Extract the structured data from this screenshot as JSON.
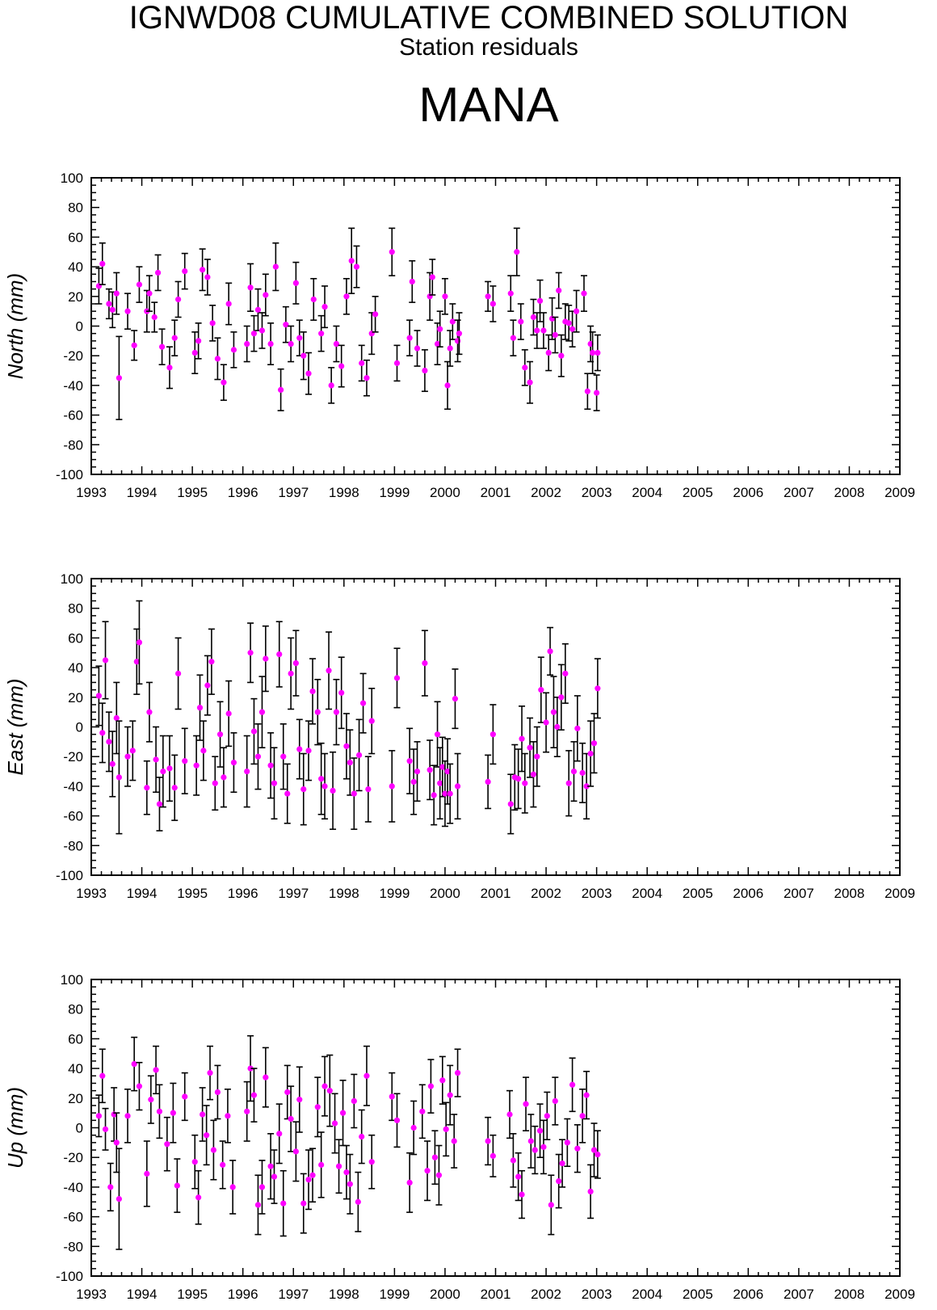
{
  "header": {
    "title": "IGNWD08 CUMULATIVE COMBINED SOLUTION",
    "subtitle": "Station residuals",
    "station": "MANA"
  },
  "colors": {
    "point": "#ff00ff",
    "errorbar": "#000000",
    "axis": "#000000",
    "background": "#ffffff"
  },
  "chart_data": [
    {
      "type": "scatter",
      "ylabel": "North (mm)",
      "xlim": [
        1993,
        2009
      ],
      "ylim": [
        -100,
        100
      ],
      "x_ticks": [
        "1993",
        "1994",
        "1995",
        "1996",
        "1997",
        "1998",
        "1999",
        "2000",
        "2001",
        "2002",
        "2003",
        "2004",
        "2005",
        "2006",
        "2007",
        "2008",
        "2009"
      ],
      "y_ticks": [
        "100",
        "80",
        "60",
        "40",
        "20",
        "0",
        "-20",
        "-40",
        "-60",
        "-80",
        "-100"
      ],
      "grid": false,
      "series": [
        {
          "x": [
            1993.15,
            1993.22,
            1993.35,
            1993.42,
            1993.5,
            1993.55,
            1993.72,
            1993.85,
            1993.95,
            1994.1,
            1994.15,
            1994.25,
            1994.32,
            1994.4,
            1994.55,
            1994.65,
            1994.72,
            1994.85,
            1995.05,
            1995.12,
            1995.2,
            1995.3,
            1995.4,
            1995.5,
            1995.62,
            1995.72,
            1995.82,
            1996.08,
            1996.15,
            1996.22,
            1996.3,
            1996.38,
            1996.45,
            1996.55,
            1996.65,
            1996.75,
            1996.85,
            1996.95,
            1997.05,
            1997.12,
            1997.2,
            1997.3,
            1997.4,
            1997.55,
            1997.62,
            1997.75,
            1997.85,
            1997.95,
            1998.05,
            1998.15,
            1998.25,
            1998.35,
            1998.45,
            1998.55,
            1998.62,
            1998.95,
            1999.05,
            1999.3,
            1999.35,
            1999.45,
            1999.6,
            1999.7,
            1999.75,
            1999.85,
            1999.9,
            2000.0,
            2000.05,
            2000.1,
            2000.15,
            2000.25,
            2000.28,
            2000.85,
            2000.95,
            2001.3,
            2001.35,
            2001.42,
            2001.5,
            2001.58,
            2001.68,
            2001.75,
            2001.82,
            2001.88,
            2001.95,
            2002.05,
            2002.12,
            2002.18,
            2002.25,
            2002.3,
            2002.38,
            2002.45,
            2002.52,
            2002.6,
            2002.75,
            2002.82,
            2002.88,
            2002.92,
            2003.0,
            2003.02
          ],
          "y": [
            27,
            42,
            15,
            11,
            22,
            -35,
            10,
            -13,
            28,
            10,
            22,
            6,
            36,
            -14,
            -28,
            -8,
            18,
            37,
            -18,
            -10,
            38,
            33,
            2,
            -22,
            -38,
            15,
            -16,
            -12,
            26,
            -5,
            11,
            -3,
            21,
            -12,
            40,
            -43,
            1,
            -12,
            29,
            -8,
            -20,
            -32,
            18,
            -5,
            13,
            -40,
            -12,
            -27,
            20,
            44,
            40,
            -25,
            -35,
            -5,
            8,
            50,
            -25,
            -8,
            30,
            -15,
            -30,
            20,
            33,
            -12,
            -2,
            20,
            -40,
            -15,
            3,
            -10,
            -5,
            20,
            15,
            22,
            -8,
            50,
            3,
            -28,
            -38,
            6,
            -3,
            17,
            -3,
            -18,
            5,
            -6,
            24,
            -20,
            3,
            2,
            -2,
            10,
            22,
            -44,
            -12,
            -18,
            -45,
            -18
          ],
          "err": [
            12,
            14,
            10,
            12,
            14,
            28,
            12,
            10,
            12,
            14,
            12,
            10,
            12,
            12,
            14,
            12,
            12,
            12,
            14,
            12,
            14,
            12,
            12,
            14,
            12,
            14,
            12,
            12,
            16,
            12,
            14,
            12,
            14,
            14,
            16,
            14,
            12,
            12,
            14,
            12,
            16,
            14,
            14,
            12,
            14,
            12,
            12,
            14,
            12,
            22,
            14,
            12,
            12,
            14,
            12,
            16,
            12,
            12,
            14,
            12,
            14,
            16,
            12,
            14,
            12,
            12,
            16,
            12,
            12,
            14,
            14,
            10,
            12,
            12,
            12,
            16,
            12,
            12,
            14,
            12,
            12,
            14,
            12,
            12,
            14,
            12,
            12,
            14,
            12,
            12,
            12,
            14,
            12,
            12,
            12,
            14,
            12,
            12
          ]
        }
      ]
    },
    {
      "type": "scatter",
      "ylabel": "East (mm)",
      "xlim": [
        1993,
        2009
      ],
      "ylim": [
        -100,
        100
      ],
      "x_ticks": [
        "1993",
        "1994",
        "1995",
        "1996",
        "1997",
        "1998",
        "1999",
        "2000",
        "2001",
        "2002",
        "2003",
        "2004",
        "2005",
        "2006",
        "2007",
        "2008",
        "2009"
      ],
      "y_ticks": [
        "100",
        "80",
        "60",
        "40",
        "20",
        "0",
        "-20",
        "-40",
        "-60",
        "-80",
        "-100"
      ],
      "grid": false,
      "series": [
        {
          "x": [
            1993.15,
            1993.22,
            1993.28,
            1993.35,
            1993.42,
            1993.5,
            1993.55,
            1993.72,
            1993.82,
            1993.9,
            1993.95,
            1994.1,
            1994.15,
            1994.28,
            1994.35,
            1994.42,
            1994.55,
            1994.65,
            1994.72,
            1994.85,
            1995.08,
            1995.15,
            1995.22,
            1995.3,
            1995.38,
            1995.45,
            1995.55,
            1995.62,
            1995.72,
            1995.82,
            1996.08,
            1996.15,
            1996.22,
            1996.3,
            1996.38,
            1996.45,
            1996.55,
            1996.62,
            1996.72,
            1996.8,
            1996.88,
            1996.95,
            1997.05,
            1997.12,
            1997.2,
            1997.3,
            1997.38,
            1997.48,
            1997.55,
            1997.62,
            1997.7,
            1997.78,
            1997.85,
            1997.95,
            1998.05,
            1998.12,
            1998.2,
            1998.3,
            1998.38,
            1998.48,
            1998.55,
            1998.95,
            1999.05,
            1999.3,
            1999.38,
            1999.45,
            1999.6,
            1999.7,
            1999.78,
            1999.85,
            1999.9,
            1999.95,
            2000.0,
            2000.05,
            2000.1,
            2000.2,
            2000.25,
            2000.85,
            2000.95,
            2001.3,
            2001.38,
            2001.45,
            2001.52,
            2001.58,
            2001.68,
            2001.75,
            2001.82,
            2001.9,
            2002.0,
            2002.08,
            2002.15,
            2002.22,
            2002.3,
            2002.38,
            2002.45,
            2002.55,
            2002.62,
            2002.72,
            2002.8,
            2002.88,
            2002.95,
            2003.02
          ],
          "y": [
            21,
            -4,
            45,
            -10,
            -25,
            6,
            -34,
            -20,
            -16,
            44,
            57,
            -41,
            10,
            -22,
            -52,
            -30,
            -28,
            -41,
            36,
            -23,
            -26,
            13,
            -16,
            28,
            44,
            -38,
            -5,
            -34,
            9,
            -24,
            -30,
            50,
            -3,
            -20,
            10,
            46,
            -26,
            -38,
            49,
            -20,
            -45,
            36,
            43,
            -15,
            -42,
            -16,
            24,
            10,
            -35,
            -40,
            38,
            -43,
            10,
            23,
            -13,
            -24,
            -45,
            -19,
            16,
            -42,
            4,
            -40,
            33,
            -23,
            -37,
            -30,
            43,
            -29,
            -46,
            -5,
            -38,
            -27,
            -45,
            -30,
            -45,
            19,
            -40,
            -37,
            -5,
            -52,
            -34,
            -35,
            -8,
            -38,
            -14,
            -32,
            -20,
            25,
            3,
            51,
            10,
            0,
            20,
            36,
            -38,
            -30,
            -1,
            -31,
            -40,
            -18,
            -11,
            26
          ],
          "err": [
            20,
            20,
            26,
            20,
            22,
            24,
            38,
            20,
            20,
            22,
            28,
            18,
            20,
            22,
            18,
            24,
            22,
            22,
            24,
            22,
            20,
            22,
            20,
            20,
            22,
            18,
            22,
            20,
            22,
            20,
            24,
            20,
            22,
            22,
            24,
            22,
            22,
            24,
            22,
            22,
            20,
            24,
            22,
            20,
            24,
            20,
            22,
            22,
            24,
            22,
            26,
            26,
            22,
            24,
            22,
            22,
            24,
            24,
            20,
            22,
            22,
            24,
            20,
            22,
            22,
            20,
            22,
            20,
            20,
            22,
            24,
            20,
            22,
            22,
            20,
            20,
            22,
            18,
            20,
            20,
            22,
            20,
            22,
            20,
            20,
            22,
            20,
            22,
            20,
            16,
            24,
            20,
            22,
            20,
            22,
            20,
            22,
            20,
            22,
            22,
            20,
            20
          ]
        }
      ]
    },
    {
      "type": "scatter",
      "ylabel": "Up (mm)",
      "xlim": [
        1993,
        2009
      ],
      "ylim": [
        -100,
        100
      ],
      "x_ticks": [
        "1993",
        "1994",
        "1995",
        "1996",
        "1997",
        "1998",
        "1999",
        "2000",
        "2001",
        "2002",
        "2003",
        "2004",
        "2005",
        "2006",
        "2007",
        "2008",
        "2009"
      ],
      "y_ticks": [
        "100",
        "80",
        "60",
        "40",
        "20",
        "0",
        "-20",
        "-40",
        "-60",
        "-80",
        "-100"
      ],
      "grid": false,
      "series": [
        {
          "x": [
            1993.15,
            1993.22,
            1993.28,
            1993.38,
            1993.45,
            1993.5,
            1993.55,
            1993.72,
            1993.85,
            1993.95,
            1994.1,
            1994.18,
            1994.28,
            1994.35,
            1994.5,
            1994.62,
            1994.7,
            1994.85,
            1995.05,
            1995.12,
            1995.2,
            1995.28,
            1995.35,
            1995.42,
            1995.5,
            1995.6,
            1995.7,
            1995.8,
            1996.08,
            1996.15,
            1996.22,
            1996.3,
            1996.38,
            1996.45,
            1996.55,
            1996.62,
            1996.72,
            1996.8,
            1996.88,
            1996.95,
            1997.05,
            1997.12,
            1997.2,
            1997.3,
            1997.38,
            1997.48,
            1997.55,
            1997.62,
            1997.72,
            1997.82,
            1997.9,
            1997.98,
            1998.05,
            1998.12,
            1998.2,
            1998.28,
            1998.35,
            1998.45,
            1998.55,
            1998.95,
            1999.05,
            1999.3,
            1999.38,
            1999.55,
            1999.65,
            1999.72,
            1999.8,
            1999.88,
            1999.95,
            2000.02,
            2000.1,
            2000.18,
            2000.25,
            2000.85,
            2000.95,
            2001.28,
            2001.35,
            2001.45,
            2001.52,
            2001.6,
            2001.7,
            2001.78,
            2001.88,
            2001.95,
            2002.02,
            2002.1,
            2002.18,
            2002.25,
            2002.32,
            2002.42,
            2002.52,
            2002.62,
            2002.72,
            2002.8,
            2002.88,
            2002.95,
            2003.02
          ],
          "y": [
            8,
            35,
            -1,
            -40,
            9,
            -10,
            -48,
            8,
            43,
            28,
            -31,
            19,
            39,
            11,
            -11,
            10,
            -39,
            21,
            -23,
            -47,
            9,
            -5,
            37,
            -15,
            24,
            -25,
            8,
            -40,
            11,
            40,
            22,
            -52,
            -40,
            34,
            -26,
            -33,
            -4,
            -51,
            24,
            6,
            -16,
            19,
            -51,
            -35,
            -32,
            14,
            -25,
            28,
            25,
            3,
            -26,
            10,
            -30,
            -38,
            18,
            -50,
            -6,
            35,
            -23,
            21,
            5,
            -37,
            0,
            11,
            -29,
            28,
            -20,
            -32,
            32,
            -1,
            22,
            -9,
            37,
            -9,
            -19,
            9,
            -22,
            -33,
            -45,
            16,
            -9,
            -15,
            -2,
            -13,
            8,
            -52,
            18,
            -36,
            -24,
            -10,
            29,
            -14,
            8,
            22,
            -43,
            -15,
            -18
          ],
          "err": [
            14,
            18,
            14,
            16,
            18,
            20,
            34,
            18,
            18,
            16,
            22,
            16,
            16,
            18,
            18,
            20,
            18,
            16,
            18,
            18,
            18,
            20,
            18,
            20,
            18,
            16,
            18,
            18,
            20,
            22,
            18,
            20,
            18,
            20,
            22,
            18,
            20,
            22,
            18,
            22,
            20,
            22,
            20,
            20,
            18,
            20,
            22,
            20,
            24,
            20,
            18,
            22,
            18,
            20,
            18,
            20,
            18,
            20,
            18,
            16,
            18,
            20,
            18,
            18,
            20,
            18,
            18,
            20,
            16,
            18,
            20,
            18,
            16,
            16,
            14,
            16,
            18,
            16,
            16,
            18,
            18,
            16,
            18,
            18,
            16,
            20,
            16,
            18,
            16,
            16,
            18,
            16,
            18,
            16,
            18,
            18,
            16
          ]
        }
      ]
    }
  ]
}
